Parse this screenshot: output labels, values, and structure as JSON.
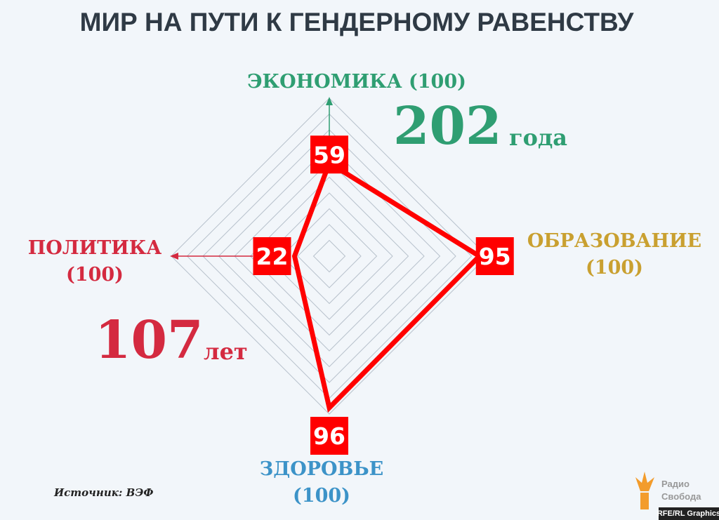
{
  "chart_data": {
    "type": "radar",
    "title": "МИР НА ПУТИ К ГЕНДЕРНОМУ РАВЕНСТВУ",
    "categories": [
      "ЭКОНОМИКА (100)",
      "ОБРАЗОВАНИЕ (100)",
      "ЗДОРОВЬЕ (100)",
      "ПОЛИТИКА (100)"
    ],
    "category_colors": [
      "#2f9e72",
      "#c9a030",
      "#3c93c8",
      "#d42a40"
    ],
    "values": [
      59,
      95,
      96,
      22
    ],
    "color": "#ff0000",
    "rlim": [
      0,
      100
    ],
    "rticks": [
      10,
      20,
      30,
      40,
      50,
      60,
      70,
      80,
      90,
      100
    ],
    "grid": true,
    "annotations": [
      {
        "value": 202,
        "text": "года",
        "color": "#2f9e72"
      },
      {
        "value": 107,
        "text": "лет",
        "color": "#d42a40"
      }
    ]
  },
  "source": "Источник: ВЭФ",
  "logo": {
    "line1": "Радио",
    "line2": "Свобода"
  },
  "credit": "RFE/RL Graphics"
}
